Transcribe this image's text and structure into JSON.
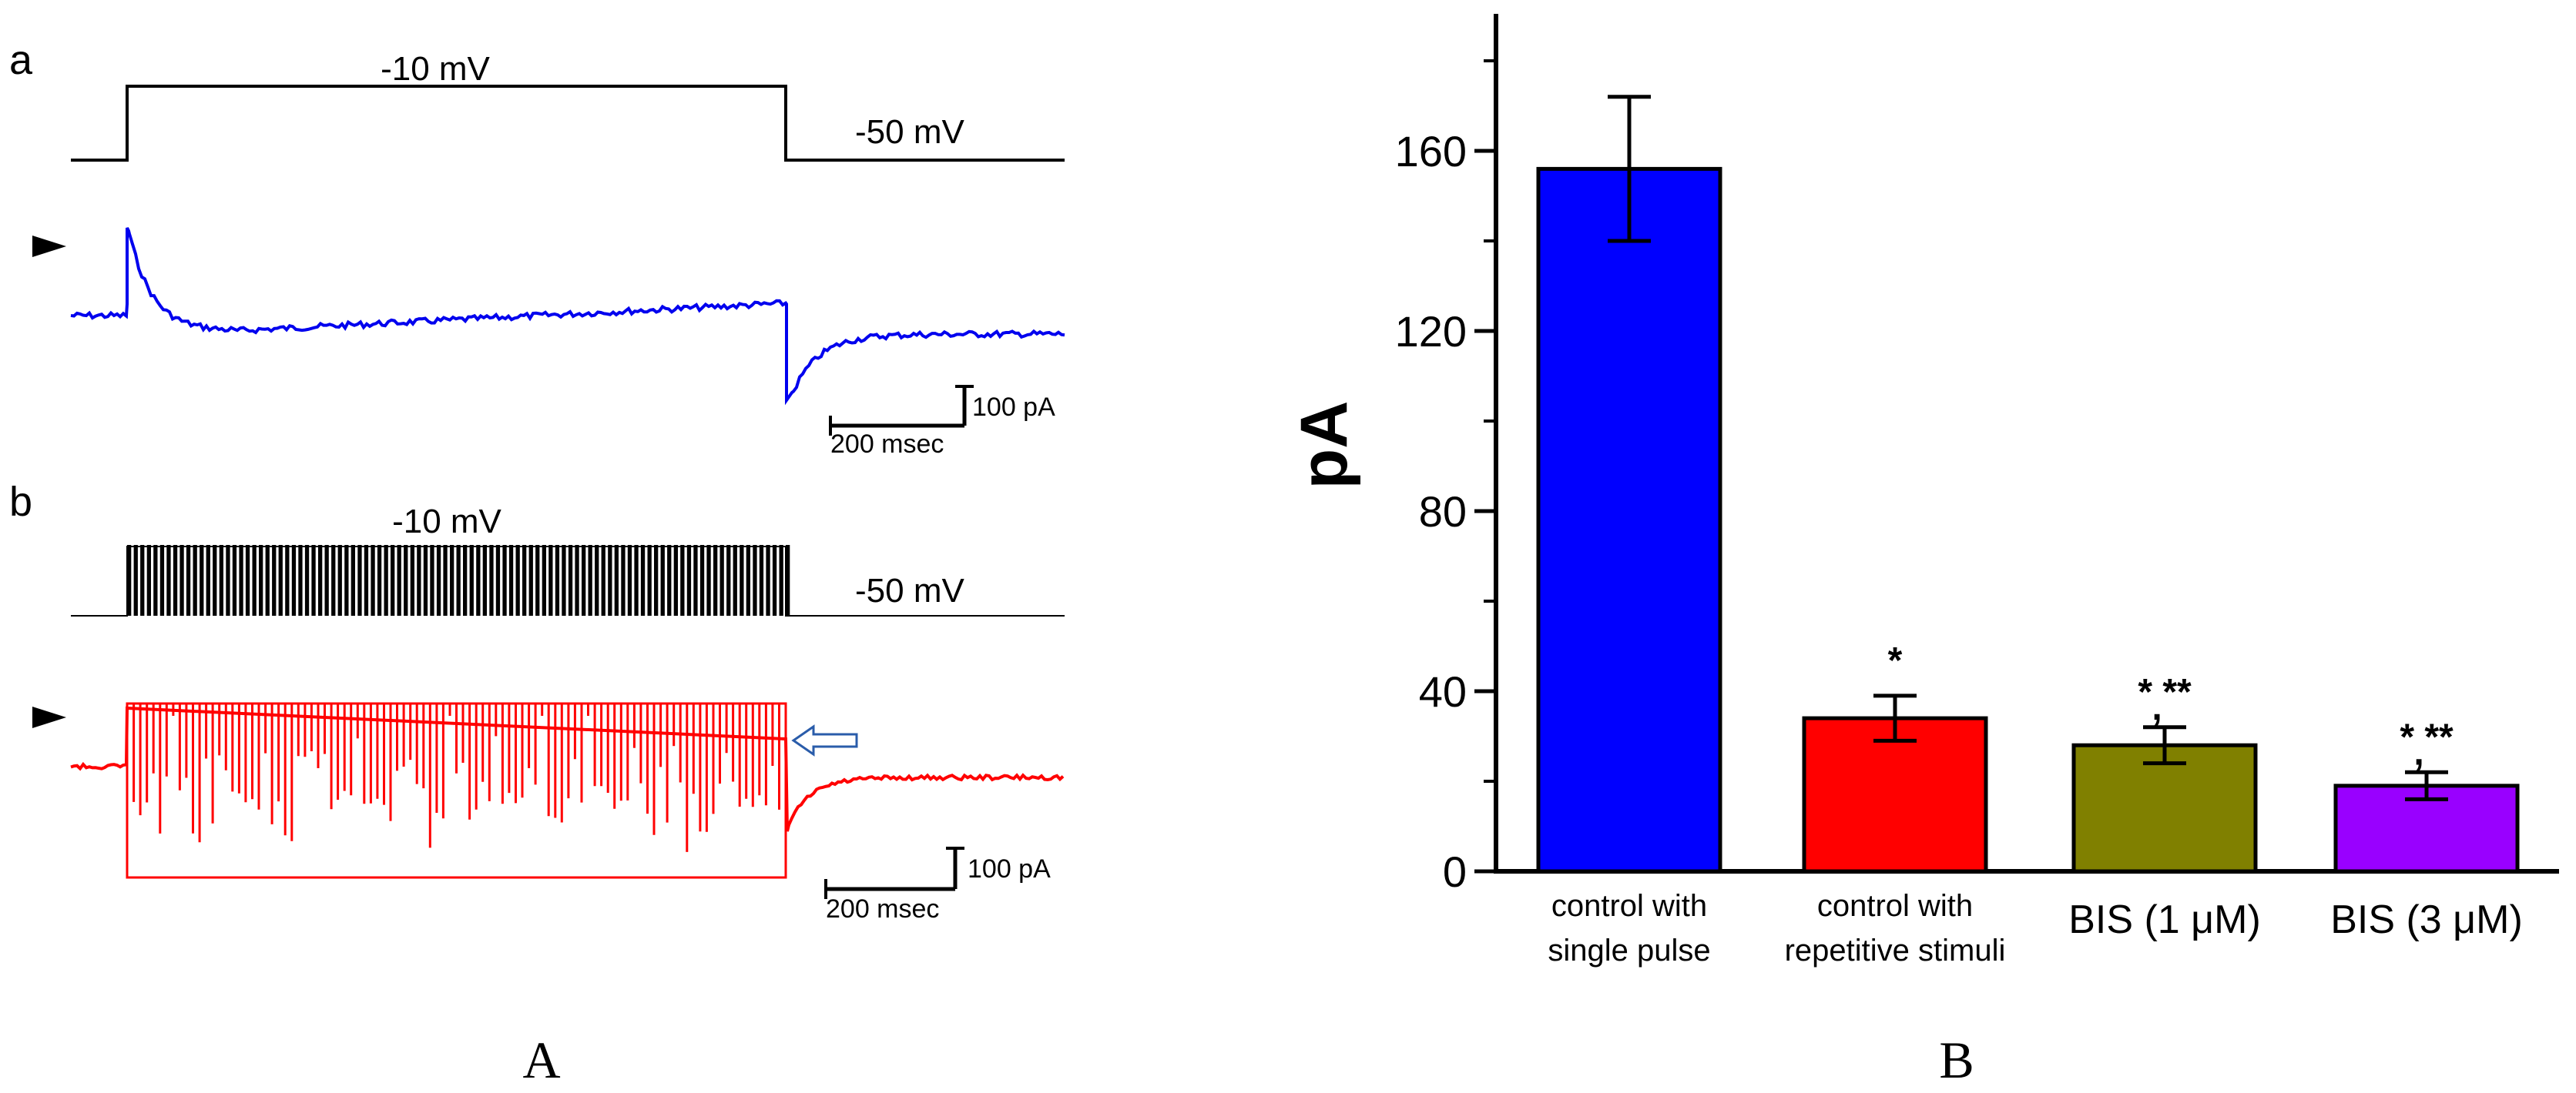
{
  "figure": {
    "caption_left": "A",
    "caption_right": "B"
  },
  "panel_a": {
    "letter": "a",
    "step_voltage": "-10 mV",
    "holding_voltage": "-50 mV",
    "scale_current": "100 pA",
    "scale_time": "200 msec",
    "trace_color": "#0000ee"
  },
  "panel_b": {
    "letter": "b",
    "step_voltage": "-10 mV",
    "holding_voltage": "-50 mV",
    "scale_current": "100 pA",
    "scale_time": "200 msec",
    "trace_color": "#ff0000"
  },
  "chart_data": {
    "type": "bar",
    "ylabel": "pA",
    "ylim": [
      0,
      190
    ],
    "yticks": [
      0,
      40,
      80,
      120,
      160
    ],
    "categories": [
      [
        "control with",
        "single pulse"
      ],
      [
        "control with",
        "repetitive stimuli"
      ],
      [
        "BIS (1 μM)"
      ],
      [
        "BIS (3 μM)"
      ]
    ],
    "values": [
      156,
      34,
      28,
      19
    ],
    "errors": [
      16,
      5,
      4,
      3
    ],
    "colors": [
      "#0000ff",
      "#ff0000",
      "#808000",
      "#9900ff"
    ],
    "significance": [
      [],
      [
        "*"
      ],
      [
        "* **",
        ","
      ],
      [
        "* **",
        ","
      ]
    ]
  }
}
